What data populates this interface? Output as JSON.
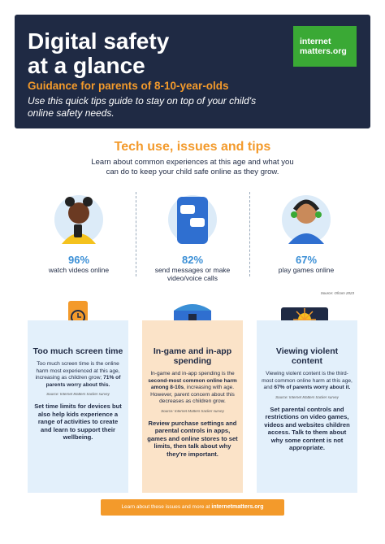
{
  "header": {
    "title": [
      "Digital safety",
      "at a glance"
    ],
    "logo": [
      "internet",
      "matters.org"
    ],
    "subtitle": "Guidance for parents of 8-10-year-olds",
    "intro": "Use this quick tips guide to stay on top of your child's online safety needs."
  },
  "section": {
    "title": "Tech use, issues and tips",
    "intro": "Learn about common experiences at this age and what you can do to keep your child safe online as they grow."
  },
  "stats": [
    {
      "value": "96%",
      "label": "watch videos online"
    },
    {
      "value": "82%",
      "label": "send messages or make video/voice calls"
    },
    {
      "value": "67%",
      "label": "play games online"
    }
  ],
  "stats_source": "Source: Ofcom 2023",
  "cards": [
    {
      "title": "Too much screen time",
      "body": [
        {
          "text": "Too much screen time is the online harm most experienced at this age, increasing as children grow; "
        },
        {
          "text": "71% of parents worry about this.",
          "bold": true
        }
      ],
      "source": "Source: Internet Matters tracker survey",
      "tip": "Set time limits for devices but also help kids experience a range of activities to create and learn to support their wellbeing."
    },
    {
      "title": "In-game and in-app spending",
      "body": [
        {
          "text": "In-game and in-app spending is the "
        },
        {
          "text": "second-most common online harm among 8-10s",
          "bold": true
        },
        {
          "text": ", increasing with age. However, parent concern about this decreases as children grow."
        }
      ],
      "source": "Source: Internet Matters tracker survey",
      "tip": "Review purchase settings and parental controls in apps, games and online stores to set limits, then talk about why they're important."
    },
    {
      "title": "Viewing violent content",
      "body": [
        {
          "text": "Viewing violent content is the third-most common online harm at this age, and "
        },
        {
          "text": "67% of parents worry about it.",
          "bold": true
        }
      ],
      "source": "Source: Internet Matters tracker survey",
      "tip": "Set parental controls and restrictions on video games, videos and websites children access. Talk to them about why some content is not appropriate."
    }
  ],
  "footer": {
    "text": "Learn about these issues and more at ",
    "link": "internetmatters.org"
  }
}
